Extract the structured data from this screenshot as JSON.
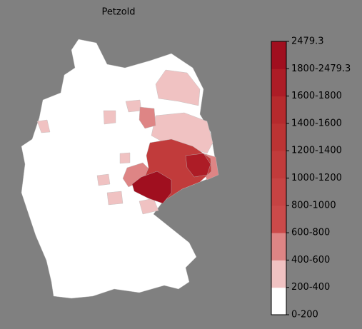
{
  "title": "Petzold",
  "colorbar": {
    "labels": [
      "0-200",
      "200-400",
      "400-600",
      "600-800",
      "800-1000",
      "1000-1200",
      "1200-1400",
      "1400-1600",
      "1600-1800",
      "1800-2479.3",
      "2479.3"
    ],
    "colors": [
      "#ffffff",
      "#f0c2c2",
      "#de8585",
      "#cb4a4a",
      "#c64343",
      "#c13b3b",
      "#bc3333",
      "#b62a2d",
      "#ad1c26",
      "#a00f1f"
    ]
  }
}
